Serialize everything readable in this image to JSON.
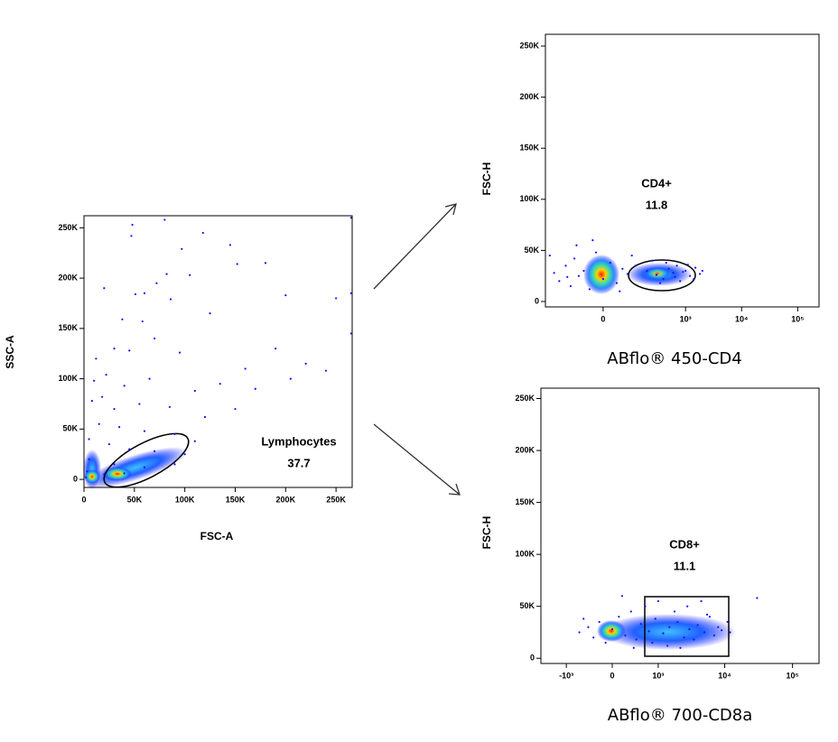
{
  "chart_data": [
    {
      "type": "scatter",
      "x_label": "FSC-A",
      "y_label": "SSC-A",
      "color": "#1010ff",
      "gate": {
        "name": "Lymphocytes",
        "value": 37.7
      },
      "xscale": "linear",
      "xlim": [
        0,
        266000
      ],
      "xticks": [
        {
          "value": 0,
          "label": "0"
        },
        {
          "value": 50000,
          "label": "50K"
        },
        {
          "value": 100000,
          "label": "100K"
        },
        {
          "value": 150000,
          "label": "150K"
        },
        {
          "value": 200000,
          "label": "200K"
        },
        {
          "value": 250000,
          "label": "250K"
        }
      ],
      "ylim": [
        -8000,
        262000
      ],
      "yticks": [
        {
          "value": 0,
          "label": "0"
        },
        {
          "value": 50000,
          "label": "50K"
        },
        {
          "value": 100000,
          "label": "100K"
        },
        {
          "value": 150000,
          "label": "150K"
        },
        {
          "value": 200000,
          "label": "200K"
        },
        {
          "value": 250000,
          "label": "250K"
        }
      ],
      "x": [
        80000,
        48000,
        47000,
        97000,
        118000,
        145000,
        152000,
        180000,
        72000,
        82000,
        105000,
        20000,
        51000,
        60000,
        86000,
        125000,
        200000,
        250000,
        265000,
        38000,
        58000,
        12000,
        30000,
        45000,
        70000,
        95000,
        160000,
        190000,
        240000,
        220000,
        265000,
        10000,
        22000,
        40000,
        65000,
        110000,
        135000,
        170000,
        205000,
        8000,
        18000,
        30000,
        55000,
        85000,
        120000,
        150000,
        15000,
        35000,
        60000,
        90000,
        110000,
        5000,
        25000,
        45000,
        70000,
        100000,
        5000,
        30000,
        60000,
        90000,
        3000,
        20000,
        40000,
        2000,
        265000
      ],
      "y": [
        258000,
        253000,
        242000,
        229000,
        245000,
        233000,
        214000,
        215000,
        195000,
        204000,
        203000,
        190000,
        184000,
        185000,
        179000,
        165000,
        183000,
        180000,
        185000,
        159000,
        157000,
        120000,
        130000,
        128000,
        140000,
        126000,
        110000,
        130000,
        108000,
        115000,
        145000,
        98000,
        104000,
        93000,
        100000,
        88000,
        95000,
        90000,
        100000,
        78000,
        82000,
        70000,
        75000,
        72000,
        62000,
        70000,
        55000,
        52000,
        48000,
        45000,
        38000,
        40000,
        35000,
        30000,
        28000,
        25000,
        20000,
        15000,
        12000,
        15000,
        8000,
        5000,
        6000,
        2000,
        260000
      ]
    },
    {
      "type": "scatter",
      "x_label": "ABflo® 450-CD4",
      "y_label": "FSC-H",
      "color": "#1010ff",
      "gate": {
        "name": "CD4+",
        "value": 11.8
      },
      "xscale": "biex",
      "xlim": [
        -360,
        240000
      ],
      "xticks": [
        {
          "value": 0,
          "label": "0"
        },
        {
          "value": 1000,
          "label": "10³"
        },
        {
          "value": 10000,
          "label": "10⁴"
        },
        {
          "value": 100000,
          "label": "10⁵"
        }
      ],
      "ylim": [
        -5300,
        261500
      ],
      "yticks": [
        {
          "value": 0,
          "label": "0"
        },
        {
          "value": 50000,
          "label": "50K"
        },
        {
          "value": 100000,
          "label": "100K"
        },
        {
          "value": 150000,
          "label": "150K"
        },
        {
          "value": 200000,
          "label": "200K"
        },
        {
          "value": 250000,
          "label": "250K"
        }
      ],
      "x": [
        -250,
        -200,
        -150,
        -120,
        -100,
        -80,
        -60,
        -40,
        -20,
        0,
        20,
        40,
        60,
        80,
        100,
        -90,
        -30,
        50,
        -140,
        120,
        200,
        300,
        400,
        500,
        600,
        700,
        800,
        1000,
        1200,
        1500,
        1800,
        250,
        350,
        450,
        650,
        900,
        1100,
        1400,
        -300,
        2000
      ],
      "y": [
        28000,
        20000,
        35000,
        15000,
        42000,
        25000,
        30000,
        12000,
        48000,
        22000,
        38000,
        18000,
        32000,
        27000,
        45000,
        55000,
        60000,
        10000,
        24000,
        35000,
        30000,
        26000,
        22000,
        32000,
        28000,
        35000,
        20000,
        30000,
        25000,
        33000,
        27000,
        40000,
        18000,
        38000,
        24000,
        29000,
        36000,
        22000,
        45000,
        30000
      ]
    },
    {
      "type": "scatter",
      "x_label": "ABflo® 700-CD8a",
      "y_label": "FSC-H",
      "color": "#1010ff",
      "gate": {
        "name": "CD8+",
        "value": 11.1
      },
      "xscale": "biex",
      "xlim": [
        -2460,
        246000
      ],
      "xticks": [
        {
          "value": -1000,
          "label": "-10³"
        },
        {
          "value": 0,
          "label": "0"
        },
        {
          "value": 1000,
          "label": "10³"
        },
        {
          "value": 10000,
          "label": "10⁴"
        },
        {
          "value": 100000,
          "label": "10⁵"
        }
      ],
      "ylim": [
        -5000,
        260000
      ],
      "yticks": [
        {
          "value": 0,
          "label": "0"
        },
        {
          "value": 50000,
          "label": "50K"
        },
        {
          "value": 100000,
          "label": "100K"
        },
        {
          "value": 150000,
          "label": "150K"
        },
        {
          "value": 200000,
          "label": "200K"
        },
        {
          "value": 250000,
          "label": "250K"
        }
      ],
      "x": [
        -600,
        -400,
        -300,
        -200,
        -100,
        0,
        100,
        200,
        300,
        400,
        500,
        700,
        900,
        1200,
        1500,
        2000,
        2500,
        3000,
        4000,
        5000,
        6000,
        7000,
        8000,
        9000,
        11000,
        12000,
        600,
        800,
        1000,
        1400,
        1800,
        2200,
        2800,
        3500,
        4500,
        5500,
        -500,
        150,
        350,
        30000
      ],
      "y": [
        25000,
        30000,
        20000,
        35000,
        15000,
        28000,
        40000,
        22000,
        45000,
        18000,
        33000,
        26000,
        38000,
        24000,
        30000,
        35000,
        20000,
        28000,
        32000,
        25000,
        40000,
        22000,
        30000,
        27000,
        35000,
        25000,
        50000,
        15000,
        55000,
        12000,
        45000,
        10000,
        50000,
        18000,
        55000,
        42000,
        38000,
        60000,
        10000,
        58000
      ]
    }
  ]
}
